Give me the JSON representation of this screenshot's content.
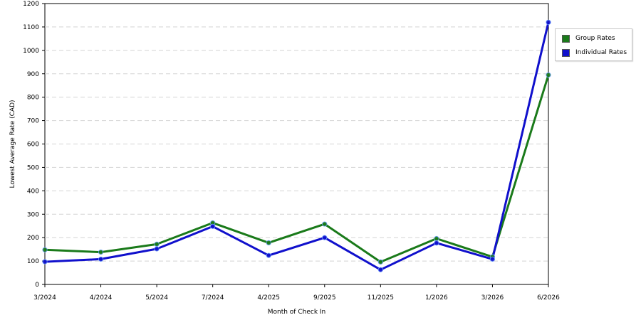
{
  "chart_data": {
    "type": "line",
    "xlabel": "Month of Check In",
    "ylabel": "Lowest Average Rate (CAD)",
    "categories": [
      "3/2024",
      "4/2024",
      "5/2024",
      "7/2024",
      "4/2025",
      "9/2025",
      "11/2025",
      "1/2026",
      "3/2026",
      "6/2026"
    ],
    "ylim": [
      0,
      1200
    ],
    "yticks": [
      0,
      100,
      200,
      300,
      400,
      500,
      600,
      700,
      800,
      900,
      1000,
      1100,
      1200
    ],
    "grid": true,
    "legend_position": "right",
    "series": [
      {
        "name": "Group Rates",
        "color": "#1a7a1a",
        "values": [
          148,
          138,
          172,
          263,
          178,
          258,
          96,
          196,
          118,
          895
        ]
      },
      {
        "name": "Individual Rates",
        "color": "#1010cc",
        "values": [
          97,
          108,
          152,
          248,
          124,
          200,
          63,
          177,
          108,
          1120
        ]
      }
    ]
  }
}
